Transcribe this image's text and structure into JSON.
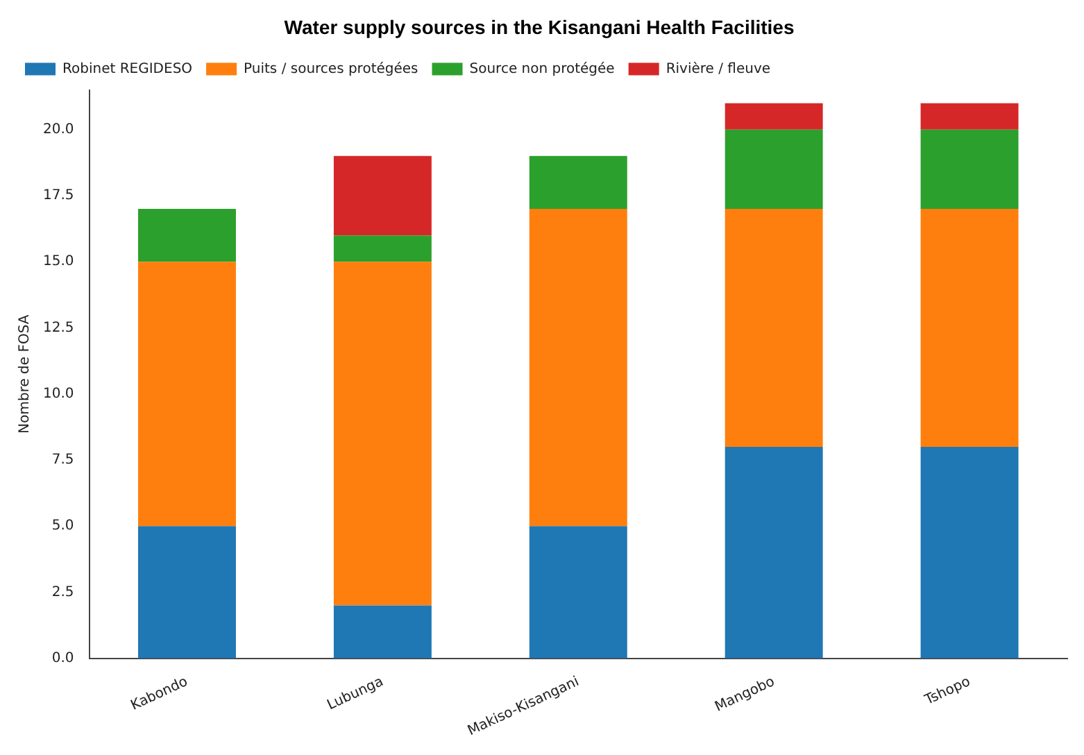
{
  "chart_data": {
    "type": "bar",
    "title": "Water supply sources in the Kisangani Health Facilities",
    "ylabel": "Nombre de FOSA",
    "stacked": true,
    "categories": [
      "Kabondo",
      "Lubunga",
      "Makiso-Kisangani",
      "Mangobo",
      "Tshopo"
    ],
    "series": [
      {
        "name": "Robinet REGIDESO",
        "color": "#1f77b4",
        "values": [
          5,
          2,
          5,
          8,
          8
        ]
      },
      {
        "name": "Puits / sources protégées",
        "color": "#ff7f0e",
        "values": [
          10,
          13,
          12,
          9,
          9
        ]
      },
      {
        "name": "Source non protégée",
        "color": "#2ca02c",
        "values": [
          2,
          1,
          2,
          3,
          3
        ]
      },
      {
        "name": "Rivière / fleuve",
        "color": "#d62728",
        "values": [
          0,
          3,
          0,
          1,
          1
        ]
      }
    ],
    "ylim": [
      0,
      21.5
    ],
    "yticks": [
      {
        "value": 0,
        "label": "0.0"
      },
      {
        "value": 2.5,
        "label": "2.5"
      },
      {
        "value": 5,
        "label": "5.0"
      },
      {
        "value": 7.5,
        "label": "7.5"
      },
      {
        "value": 10,
        "label": "10.0"
      },
      {
        "value": 12.5,
        "label": "12.5"
      },
      {
        "value": 15,
        "label": "15.0"
      },
      {
        "value": 17.5,
        "label": "17.5"
      },
      {
        "value": 20,
        "label": "20.0"
      }
    ],
    "legend": "top left",
    "grid": false
  }
}
